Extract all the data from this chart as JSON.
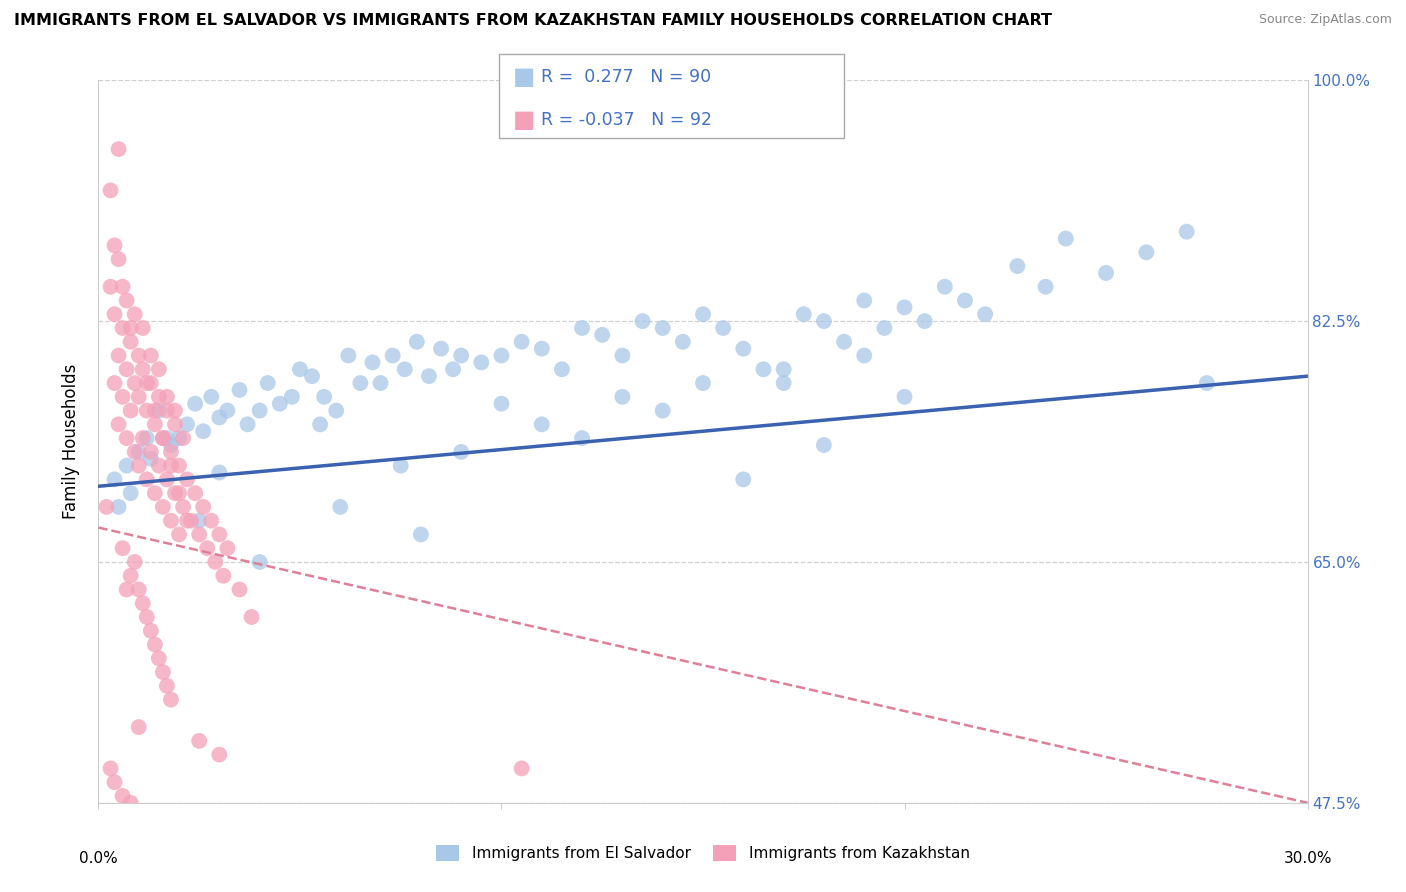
{
  "title": "IMMIGRANTS FROM EL SALVADOR VS IMMIGRANTS FROM KAZAKHSTAN FAMILY HOUSEHOLDS CORRELATION CHART",
  "source": "Source: ZipAtlas.com",
  "ylabel": "Family Households",
  "x_min": 0.0,
  "x_max": 30.0,
  "y_min": 47.5,
  "y_max": 100.0,
  "y_ticks": [
    47.5,
    65.0,
    82.5,
    100.0
  ],
  "el_salvador_color": "#a8c8e8",
  "kazakhstan_color": "#f4a0b8",
  "el_salvador_line_color": "#3a62b0",
  "kazakhstan_line_color": "#e08098",
  "R_el_salvador": 0.277,
  "N_el_salvador": 90,
  "R_kazakhstan": -0.037,
  "N_kazakhstan": 92,
  "legend_label_1": "Immigrants from El Salvador",
  "legend_label_2": "Immigrants from Kazakhstan",
  "el_salvador_trendline": [
    70.5,
    78.5
  ],
  "kazakhstan_trendline": [
    67.5,
    47.5
  ],
  "el_salvador_x": [
    0.4,
    0.5,
    0.7,
    0.8,
    1.0,
    1.2,
    1.3,
    1.5,
    1.7,
    1.8,
    2.0,
    2.2,
    2.4,
    2.6,
    2.8,
    3.0,
    3.2,
    3.5,
    3.7,
    4.0,
    4.2,
    4.5,
    4.8,
    5.0,
    5.3,
    5.6,
    5.9,
    6.2,
    6.5,
    6.8,
    7.0,
    7.3,
    7.6,
    7.9,
    8.2,
    8.5,
    8.8,
    9.0,
    9.5,
    10.0,
    10.5,
    11.0,
    11.5,
    12.0,
    12.5,
    13.0,
    13.5,
    14.0,
    14.5,
    15.0,
    15.5,
    16.0,
    16.5,
    17.0,
    17.5,
    18.0,
    18.5,
    19.0,
    19.5,
    20.0,
    20.5,
    21.0,
    21.5,
    22.0,
    22.8,
    23.5,
    24.0,
    25.0,
    26.0,
    27.0,
    2.5,
    3.0,
    4.0,
    5.5,
    7.5,
    9.0,
    11.0,
    13.0,
    15.0,
    17.0,
    19.0,
    6.0,
    8.0,
    10.0,
    12.0,
    14.0,
    16.0,
    18.0,
    20.0,
    27.5
  ],
  "el_salvador_y": [
    71.0,
    69.0,
    72.0,
    70.0,
    73.0,
    74.0,
    72.5,
    76.0,
    74.0,
    73.5,
    74.0,
    75.0,
    76.5,
    74.5,
    77.0,
    75.5,
    76.0,
    77.5,
    75.0,
    76.0,
    78.0,
    76.5,
    77.0,
    79.0,
    78.5,
    77.0,
    76.0,
    80.0,
    78.0,
    79.5,
    78.0,
    80.0,
    79.0,
    81.0,
    78.5,
    80.5,
    79.0,
    80.0,
    79.5,
    80.0,
    81.0,
    80.5,
    79.0,
    82.0,
    81.5,
    80.0,
    82.5,
    82.0,
    81.0,
    83.0,
    82.0,
    80.5,
    79.0,
    78.0,
    83.0,
    82.5,
    81.0,
    84.0,
    82.0,
    83.5,
    82.5,
    85.0,
    84.0,
    83.0,
    86.5,
    85.0,
    88.5,
    86.0,
    87.5,
    89.0,
    68.0,
    71.5,
    65.0,
    75.0,
    72.0,
    73.0,
    75.0,
    77.0,
    78.0,
    79.0,
    80.0,
    69.0,
    67.0,
    76.5,
    74.0,
    76.0,
    71.0,
    73.5,
    77.0,
    78.0
  ],
  "kazakhstan_x": [
    0.2,
    0.3,
    0.4,
    0.4,
    0.5,
    0.5,
    0.6,
    0.6,
    0.7,
    0.7,
    0.8,
    0.8,
    0.9,
    0.9,
    1.0,
    1.0,
    1.1,
    1.1,
    1.2,
    1.2,
    1.3,
    1.3,
    1.4,
    1.4,
    1.5,
    1.5,
    1.6,
    1.6,
    1.7,
    1.7,
    1.8,
    1.8,
    1.9,
    1.9,
    2.0,
    2.0,
    2.1,
    2.2,
    2.3,
    2.4,
    2.5,
    2.6,
    2.7,
    2.8,
    2.9,
    3.0,
    3.1,
    3.2,
    3.5,
    3.8,
    0.3,
    0.5,
    0.7,
    0.9,
    1.1,
    1.3,
    1.5,
    1.7,
    1.9,
    2.1,
    0.4,
    0.6,
    0.8,
    1.0,
    1.2,
    1.4,
    1.6,
    1.8,
    2.0,
    2.2,
    0.5,
    0.6,
    0.7,
    0.8,
    0.9,
    1.0,
    1.1,
    1.2,
    1.3,
    1.4,
    1.5,
    1.6,
    1.7,
    1.8,
    2.5,
    3.0,
    0.3,
    0.4,
    0.6,
    0.8,
    1.0,
    10.5
  ],
  "kazakhstan_y": [
    69.0,
    85.0,
    78.0,
    83.0,
    75.0,
    80.0,
    77.0,
    82.0,
    79.0,
    74.0,
    76.0,
    81.0,
    73.0,
    78.0,
    72.0,
    77.0,
    74.0,
    79.0,
    71.0,
    76.0,
    73.0,
    78.0,
    70.0,
    75.0,
    72.0,
    77.0,
    69.0,
    74.0,
    71.0,
    76.0,
    68.0,
    73.0,
    70.0,
    75.0,
    67.0,
    72.0,
    69.0,
    71.0,
    68.0,
    70.0,
    67.0,
    69.0,
    66.0,
    68.0,
    65.0,
    67.0,
    64.0,
    66.0,
    63.0,
    61.0,
    92.0,
    87.0,
    84.0,
    83.0,
    82.0,
    80.0,
    79.0,
    77.0,
    76.0,
    74.0,
    88.0,
    85.0,
    82.0,
    80.0,
    78.0,
    76.0,
    74.0,
    72.0,
    70.0,
    68.0,
    95.0,
    66.0,
    63.0,
    64.0,
    65.0,
    63.0,
    62.0,
    61.0,
    60.0,
    59.0,
    58.0,
    57.0,
    56.0,
    55.0,
    52.0,
    51.0,
    50.0,
    49.0,
    48.0,
    47.5,
    53.0,
    50.0
  ]
}
